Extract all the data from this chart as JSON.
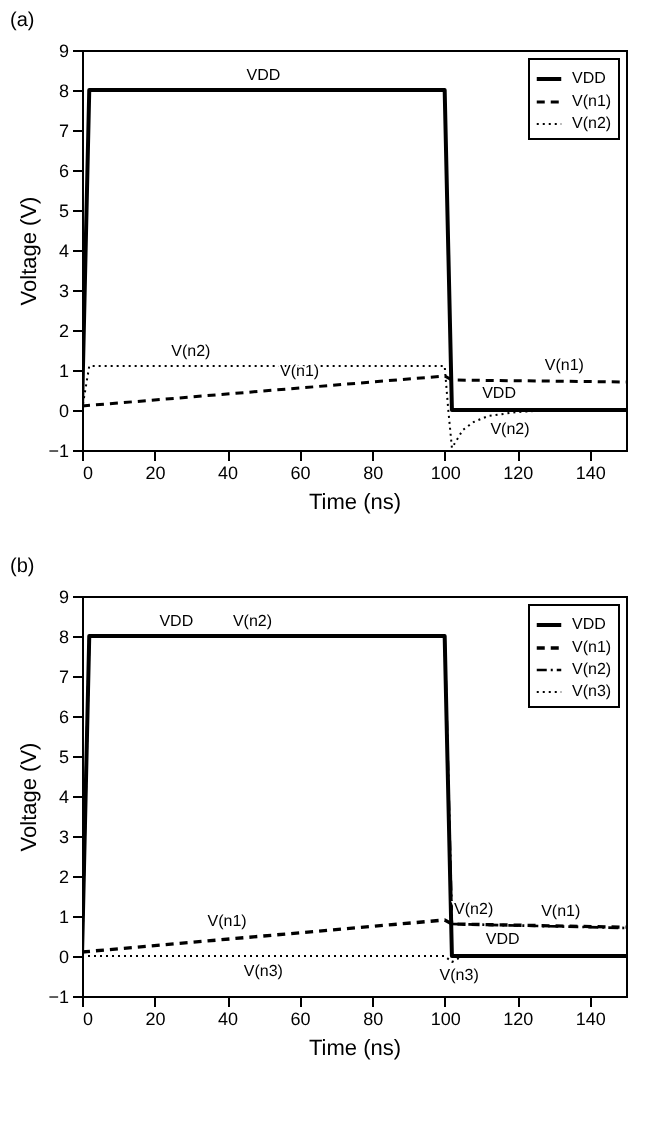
{
  "chart_data": [
    {
      "type": "line",
      "title": "(a)",
      "xlabel": "Time (ns)",
      "ylabel": "Voltage (V)",
      "xlim": [
        0,
        150
      ],
      "ylim": [
        -1,
        9
      ],
      "xticks": [
        0,
        20,
        40,
        60,
        80,
        100,
        120,
        140
      ],
      "yticks": [
        -1,
        0,
        1,
        2,
        3,
        4,
        5,
        6,
        7,
        8,
        9
      ],
      "grid": false,
      "legend": "top right",
      "series": [
        {
          "name": "VDD",
          "color": "#000000",
          "line_style": "solid",
          "x": [
            0,
            2,
            100,
            102,
            150
          ],
          "values": [
            0,
            8,
            8,
            0,
            0
          ]
        },
        {
          "name": "V(n1)",
          "color": "#000000",
          "line_style": "dashed",
          "x": [
            0,
            100,
            102,
            150
          ],
          "values": [
            0.1,
            0.85,
            0.75,
            0.7
          ]
        },
        {
          "name": "V(n2)",
          "color": "#000000",
          "line_style": "dotted",
          "x": [
            0,
            2,
            100,
            101,
            102,
            105,
            108,
            112,
            120,
            130,
            150
          ],
          "values": [
            0,
            1.1,
            1.1,
            0,
            -0.95,
            -0.5,
            -0.3,
            -0.15,
            -0.05,
            0,
            0
          ]
        }
      ],
      "annotations": [
        {
          "text": "VDD",
          "x": 50,
          "y": 8
        },
        {
          "text": "V(n2)",
          "x": 30,
          "y": 1.1
        },
        {
          "text": "V(n1)",
          "x": 60,
          "y": 0.6
        },
        {
          "text": "V(n1)",
          "x": 133,
          "y": 0.75
        },
        {
          "text": "VDD",
          "x": 115,
          "y": 0.05
        },
        {
          "text": "V(n2)",
          "x": 118,
          "y": -0.1
        }
      ]
    },
    {
      "type": "line",
      "title": "(b)",
      "xlabel": "Time (ns)",
      "ylabel": "Voltage (V)",
      "xlim": [
        0,
        150
      ],
      "ylim": [
        -1,
        9
      ],
      "xticks": [
        0,
        20,
        40,
        60,
        80,
        100,
        120,
        140
      ],
      "yticks": [
        -1,
        0,
        1,
        2,
        3,
        4,
        5,
        6,
        7,
        8,
        9
      ],
      "grid": false,
      "legend": "top right",
      "series": [
        {
          "name": "VDD",
          "color": "#000000",
          "line_style": "solid",
          "x": [
            0,
            2,
            100,
            102,
            150
          ],
          "values": [
            0,
            8,
            8,
            0,
            0
          ]
        },
        {
          "name": "V(n1)",
          "color": "#000000",
          "line_style": "dashed",
          "x": [
            0,
            100,
            102,
            150
          ],
          "values": [
            0.1,
            0.9,
            0.8,
            0.72
          ]
        },
        {
          "name": "V(n2)",
          "color": "#000000",
          "line_style": "dashdot",
          "x": [
            0,
            2,
            100,
            102,
            150
          ],
          "values": [
            0,
            8,
            8,
            0.8,
            0.7
          ]
        },
        {
          "name": "V(n3)",
          "color": "#000000",
          "line_style": "dotted",
          "x": [
            0,
            100,
            102,
            105,
            150
          ],
          "values": [
            0,
            0,
            -0.15,
            0,
            0
          ]
        }
      ],
      "annotations": [
        {
          "text": "VDD",
          "x": 26,
          "y": 8
        },
        {
          "text": "V(n2)",
          "x": 47,
          "y": 8
        },
        {
          "text": "V(n1)",
          "x": 40,
          "y": 0.5
        },
        {
          "text": "V(n2)",
          "x": 108,
          "y": 0.8
        },
        {
          "text": "V(n1)",
          "x": 132,
          "y": 0.75
        },
        {
          "text": "VDD",
          "x": 116,
          "y": 0.05
        },
        {
          "text": "V(n3)",
          "x": 50,
          "y": 0
        },
        {
          "text": "V(n3)",
          "x": 104,
          "y": -0.1
        }
      ]
    }
  ]
}
